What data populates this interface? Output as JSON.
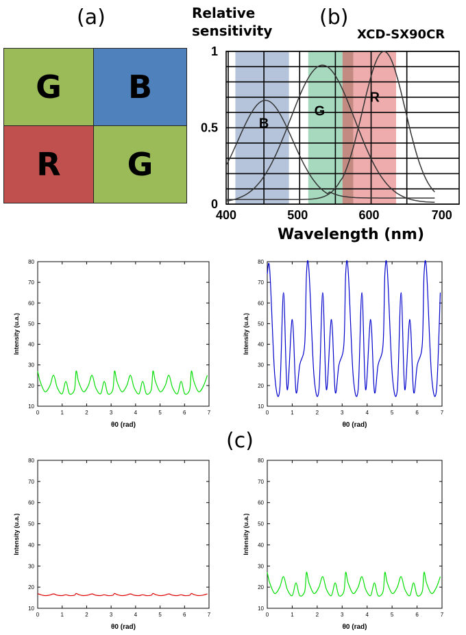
{
  "panels": {
    "a": "(a)",
    "b": "(b)",
    "c": "(c)"
  },
  "bayer": {
    "cells": [
      {
        "letter": "G",
        "color": "#9bbb59"
      },
      {
        "letter": "B",
        "color": "#4f81bd"
      },
      {
        "letter": "R",
        "color": "#c0504d"
      },
      {
        "letter": "G",
        "color": "#9bbb59"
      }
    ]
  },
  "spectral": {
    "ylabel_line1": "Relative",
    "ylabel_line2": "sensitivity",
    "camera": "XCD-SX90CR",
    "xlabel": "Wavelength (nm)",
    "x_ticks": [
      "400",
      "500",
      "600",
      "700"
    ],
    "y_ticks": [
      "1",
      "0.5",
      "0"
    ],
    "bands": [
      {
        "label": "B",
        "from": 410,
        "to": 485,
        "color": "#8ea5c8"
      },
      {
        "label": "G",
        "from": 512,
        "to": 560,
        "color": "#77c49a"
      },
      {
        "label": "R",
        "from": 560,
        "to": 635,
        "color": "#e57f7f"
      }
    ]
  },
  "chart_data": [
    {
      "type": "line",
      "title": "",
      "xlabel": "θ0 (rad)",
      "ylabel": "Intensity (u.a.)",
      "xlim": [
        0,
        7
      ],
      "ylim": [
        10,
        80
      ],
      "x_ticks": [
        "0",
        "1",
        "2",
        "3",
        "4",
        "5",
        "6",
        "7"
      ],
      "y_ticks": [
        "10",
        "20",
        "30",
        "40",
        "50",
        "60",
        "70",
        "80"
      ],
      "color": "#00dd00",
      "x": [
        0.0,
        0.1,
        0.3,
        0.5,
        0.65,
        0.8,
        1.0,
        1.15,
        1.3,
        1.5,
        1.65
      ],
      "y": [
        27,
        22,
        17,
        20,
        25,
        19,
        16,
        22,
        16,
        18,
        27
      ],
      "period": 1.57
    },
    {
      "type": "line",
      "title": "",
      "xlabel": "θ0 (rad)",
      "ylabel": "Intensity (u.a.)",
      "xlim": [
        0,
        7
      ],
      "ylim": [
        10,
        80
      ],
      "x_ticks": [
        "0",
        "1",
        "2",
        "3",
        "4",
        "5",
        "6",
        "7"
      ],
      "y_ticks": [
        "10",
        "20",
        "30",
        "40",
        "50",
        "60",
        "70",
        "80"
      ],
      "color": "#0000cc",
      "x": [
        0.0,
        0.1,
        0.3,
        0.5,
        0.65,
        0.8,
        1.0,
        1.15,
        1.3,
        1.5,
        1.65
      ],
      "y": [
        74,
        76,
        25,
        18,
        65,
        18,
        52,
        17,
        30,
        40,
        76
      ],
      "period": 1.57
    },
    {
      "type": "line",
      "title": "",
      "xlabel": "θ0 (rad)",
      "ylabel": "Intensity (u.a.)",
      "xlim": [
        0,
        7
      ],
      "ylim": [
        10,
        80
      ],
      "x_ticks": [
        "0",
        "1",
        "2",
        "3",
        "4",
        "5",
        "6",
        "7"
      ],
      "y_ticks": [
        "10",
        "20",
        "30",
        "40",
        "50",
        "60",
        "70",
        "80"
      ],
      "color": "#dd0000",
      "x": [
        0.0,
        0.1,
        0.3,
        0.5,
        0.65,
        0.8,
        1.0,
        1.15,
        1.3,
        1.5,
        1.65
      ],
      "y": [
        17,
        16.5,
        16,
        16.3,
        16.8,
        16.2,
        16,
        16.4,
        16,
        16.2,
        17
      ],
      "period": 1.57
    },
    {
      "type": "line",
      "title": "",
      "xlabel": "θ0 (rad)",
      "ylabel": "Intensity (u.a.)",
      "xlim": [
        0,
        7
      ],
      "ylim": [
        10,
        80
      ],
      "x_ticks": [
        "0",
        "1",
        "2",
        "3",
        "4",
        "5",
        "6",
        "7"
      ],
      "y_ticks": [
        "10",
        "20",
        "30",
        "40",
        "50",
        "60",
        "70",
        "80"
      ],
      "color": "#00dd00",
      "x": [
        0.0,
        0.1,
        0.3,
        0.5,
        0.65,
        0.8,
        1.0,
        1.15,
        1.3,
        1.5,
        1.65
      ],
      "y": [
        27,
        22,
        17,
        20,
        25,
        19,
        16,
        22,
        16,
        18,
        27
      ],
      "period": 1.57
    }
  ]
}
